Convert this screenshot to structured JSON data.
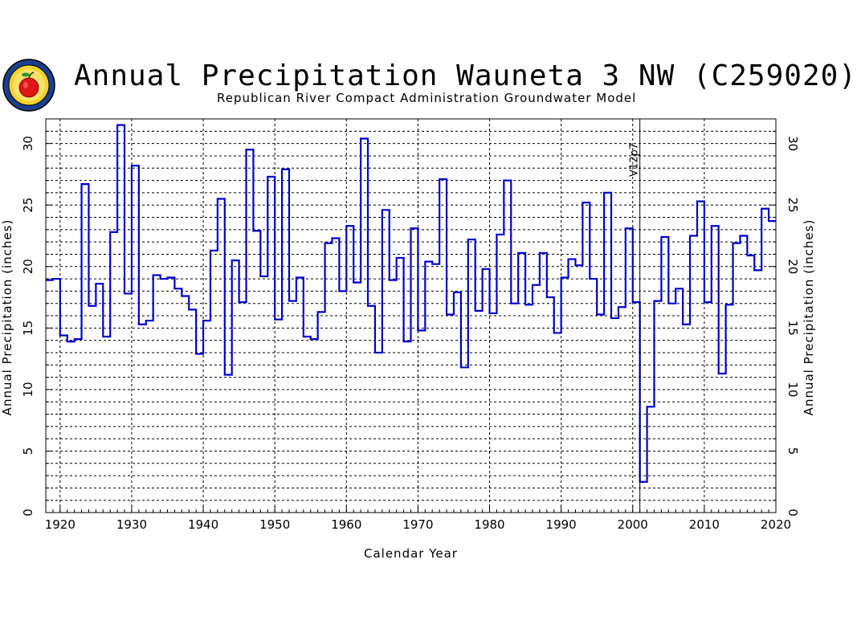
{
  "chart_data": {
    "type": "line",
    "step": true,
    "title": "Annual Precipitation Wauneta 3 NW (C259020)",
    "subtitle": "Republican River Compact Administration Groundwater Model",
    "xlabel": "Calendar Year",
    "ylabel": "Annual Precipitation (inches)",
    "ylabel_right": "Annual Precipitation (inches)",
    "xlim": [
      1918,
      2020
    ],
    "ylim": [
      0,
      32
    ],
    "xticks": [
      1920,
      1930,
      1940,
      1950,
      1960,
      1970,
      1980,
      1990,
      2000,
      2010,
      2020
    ],
    "yticks": [
      0,
      5,
      10,
      15,
      20,
      25,
      30
    ],
    "grid": true,
    "series_color": "#0000cc",
    "annotation": {
      "text": "V12p7",
      "x": 2001
    },
    "x": [
      1918,
      1919,
      1920,
      1921,
      1922,
      1923,
      1924,
      1925,
      1926,
      1927,
      1928,
      1929,
      1930,
      1931,
      1932,
      1933,
      1934,
      1935,
      1936,
      1937,
      1938,
      1939,
      1940,
      1941,
      1942,
      1943,
      1944,
      1945,
      1946,
      1947,
      1948,
      1949,
      1950,
      1951,
      1952,
      1953,
      1954,
      1955,
      1956,
      1957,
      1958,
      1959,
      1960,
      1961,
      1962,
      1963,
      1964,
      1965,
      1966,
      1967,
      1968,
      1969,
      1970,
      1971,
      1972,
      1973,
      1974,
      1975,
      1976,
      1977,
      1978,
      1979,
      1980,
      1981,
      1982,
      1983,
      1984,
      1985,
      1986,
      1987,
      1988,
      1989,
      1990,
      1991,
      1992,
      1993,
      1994,
      1995,
      1996,
      1997,
      1998,
      1999,
      2000,
      2001,
      2002,
      2003,
      2004,
      2005,
      2006,
      2007,
      2008,
      2009,
      2010,
      2011,
      2012,
      2013,
      2014,
      2015,
      2016,
      2017,
      2018,
      2019
    ],
    "values": [
      18.9,
      19.0,
      14.4,
      13.9,
      14.1,
      26.7,
      16.8,
      18.6,
      14.3,
      22.8,
      31.5,
      17.8,
      28.2,
      15.3,
      15.6,
      19.3,
      19.0,
      19.1,
      18.2,
      17.6,
      16.5,
      12.9,
      15.6,
      21.3,
      25.5,
      11.2,
      20.5,
      17.1,
      29.5,
      22.9,
      19.2,
      27.3,
      15.7,
      27.9,
      17.2,
      19.1,
      14.3,
      14.1,
      16.3,
      21.9,
      22.3,
      18.0,
      23.3,
      18.7,
      30.4,
      16.8,
      13.0,
      24.6,
      18.9,
      20.7,
      13.9,
      23.1,
      14.8,
      20.4,
      20.2,
      27.1,
      16.1,
      17.9,
      11.8,
      22.2,
      16.4,
      19.8,
      16.2,
      22.6,
      27.0,
      17.0,
      21.1,
      16.9,
      18.5,
      21.1,
      17.5,
      14.6,
      19.1,
      20.6,
      20.1,
      25.2,
      19.0,
      16.1,
      26.0,
      15.8,
      16.7,
      23.1,
      17.1,
      2.5,
      8.6,
      17.2,
      22.4,
      17.0,
      18.2,
      15.3,
      22.5,
      25.3,
      17.1,
      23.3,
      11.3,
      16.9,
      21.9,
      22.5,
      20.9,
      19.7,
      24.7,
      23.7
    ]
  }
}
